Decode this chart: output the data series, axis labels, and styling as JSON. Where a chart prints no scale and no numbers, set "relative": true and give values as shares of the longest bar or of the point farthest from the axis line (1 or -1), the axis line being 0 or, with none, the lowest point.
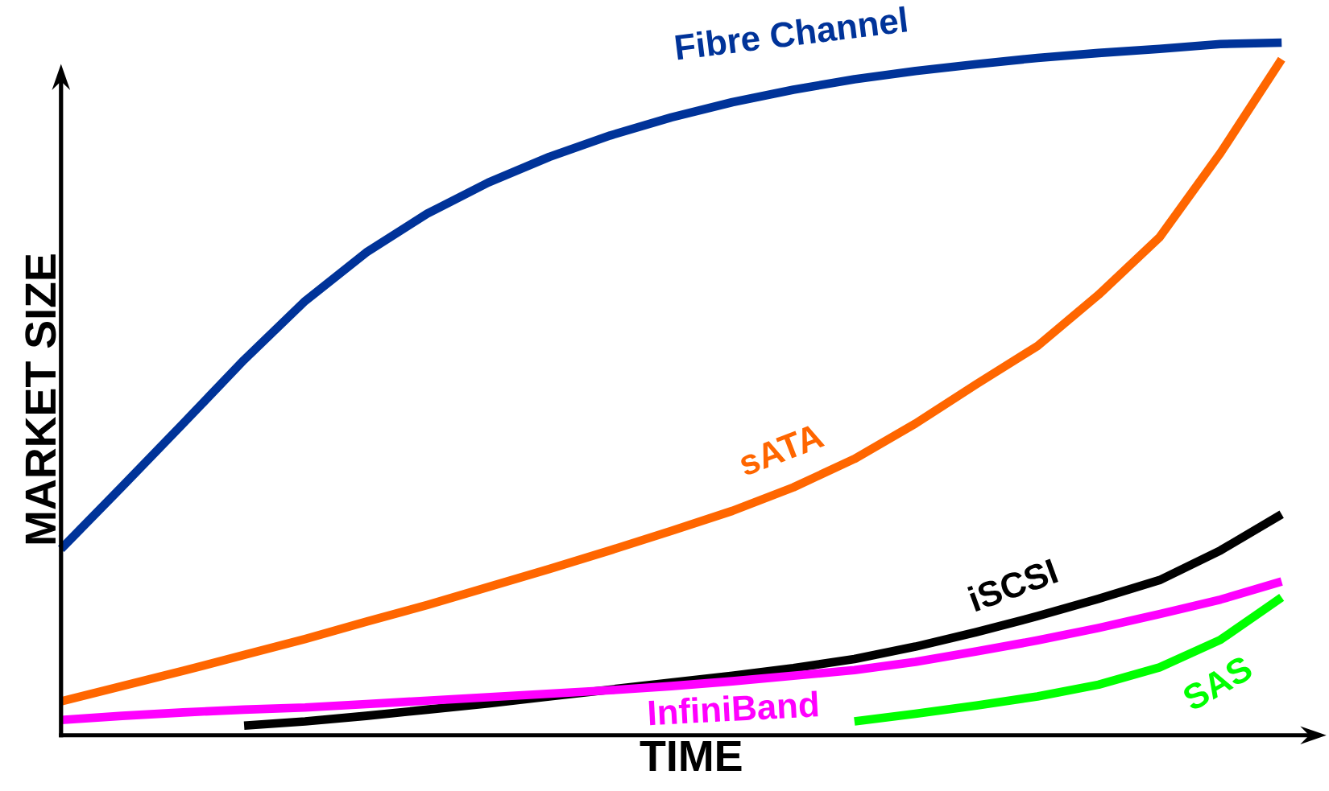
{
  "chart_data": {
    "type": "line",
    "relative": true,
    "xlabel": "TIME",
    "ylabel": "MARKET SIZE",
    "categories": [
      null,
      null,
      null,
      null,
      null,
      null,
      null,
      null,
      null,
      null,
      null,
      null,
      null,
      null,
      null,
      null,
      null,
      null,
      null,
      null,
      null
    ],
    "series": [
      {
        "name": "Fibre Channel",
        "color": "#003399",
        "values": [
          0.269,
          0.359,
          0.45,
          0.542,
          0.627,
          0.697,
          0.753,
          0.798,
          0.835,
          0.866,
          0.892,
          0.914,
          0.932,
          0.947,
          0.959,
          0.969,
          0.978,
          0.985,
          0.991,
          0.998,
          1.0
        ]
      },
      {
        "name": "sATA",
        "color": "#ff6600",
        "values": [
          0.049,
          0.071,
          0.093,
          0.116,
          0.139,
          0.164,
          0.188,
          0.214,
          0.24,
          0.267,
          0.295,
          0.324,
          0.358,
          0.399,
          0.45,
          0.507,
          0.562,
          0.636,
          0.719,
          0.841,
          0.976
        ]
      },
      {
        "name": "iSCSI",
        "color": "#000000",
        "values": [
          null,
          null,
          null,
          0.014,
          0.02,
          0.028,
          0.037,
          0.046,
          0.056,
          0.066,
          0.076,
          0.086,
          0.097,
          0.11,
          0.128,
          0.149,
          0.172,
          0.197,
          0.224,
          0.267,
          0.319
        ]
      },
      {
        "name": "InfiniBand",
        "color": "#ff00ff",
        "values": [
          0.022,
          0.028,
          0.033,
          0.037,
          0.04,
          0.045,
          0.05,
          0.055,
          0.06,
          0.065,
          0.071,
          0.078,
          0.086,
          0.094,
          0.106,
          0.121,
          0.137,
          0.155,
          0.175,
          0.196,
          0.222
        ]
      },
      {
        "name": "SAS",
        "color": "#00ff00",
        "values": [
          null,
          null,
          null,
          null,
          null,
          null,
          null,
          null,
          null,
          null,
          null,
          null,
          null,
          0.02,
          0.031,
          0.043,
          0.056,
          0.073,
          0.098,
          0.138,
          0.199
        ]
      }
    ]
  }
}
